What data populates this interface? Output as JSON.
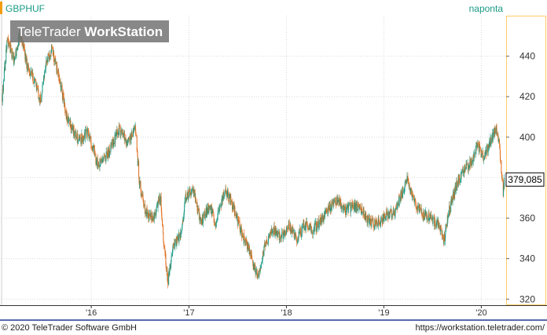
{
  "header": {
    "symbol": "GBPHUF",
    "interval": "naponta",
    "watermark_prefix": "TeleTrader ",
    "watermark_bold": "WorkStation"
  },
  "footer": {
    "copyright": "© 2020 TeleTrader Software GmbH",
    "url": "https://workstation.teletrader.com/"
  },
  "colors": {
    "up": "#1a9a86",
    "down": "#e07020",
    "last_badge_bg": "#ffffff",
    "axis_border": "#ffcc66",
    "footer_line": "#1f3a93"
  },
  "chart_data": {
    "type": "candlestick",
    "series_name": "GBPHUF",
    "y_axis": {
      "ticks": [
        320,
        340,
        360,
        380,
        400,
        420,
        440
      ],
      "ylim": [
        317,
        460
      ],
      "position": "right"
    },
    "x_axis": {
      "ticks": [
        "'16",
        "'17",
        "'18",
        "'19",
        "'20"
      ],
      "tick_dates": [
        "2016-01-01",
        "2017-01-01",
        "2018-01-01",
        "2019-01-01",
        "2020-01-01"
      ],
      "xlim": [
        "2015-01-30",
        "2020-04-03"
      ]
    },
    "last_value_label": "379,085",
    "last_value": 379.085,
    "grid": true,
    "anchors": [
      [
        "2015-02-02",
        420
      ],
      [
        "2015-02-20",
        448
      ],
      [
        "2015-03-20",
        438
      ],
      [
        "2015-04-10",
        452
      ],
      [
        "2015-05-05",
        436
      ],
      [
        "2015-06-10",
        425
      ],
      [
        "2015-06-25",
        418
      ],
      [
        "2015-07-15",
        436
      ],
      [
        "2015-08-05",
        444
      ],
      [
        "2015-09-01",
        430
      ],
      [
        "2015-10-01",
        410
      ],
      [
        "2015-11-15",
        398
      ],
      [
        "2015-12-20",
        403
      ],
      [
        "2016-01-25",
        386
      ],
      [
        "2016-03-05",
        392
      ],
      [
        "2016-04-15",
        404
      ],
      [
        "2016-05-15",
        397
      ],
      [
        "2016-06-15",
        405
      ],
      [
        "2016-06-28",
        378
      ],
      [
        "2016-07-20",
        364
      ],
      [
        "2016-08-20",
        359
      ],
      [
        "2016-09-15",
        370
      ],
      [
        "2016-10-01",
        345
      ],
      [
        "2016-10-14",
        328
      ],
      [
        "2016-11-01",
        345
      ],
      [
        "2016-12-01",
        352
      ],
      [
        "2016-12-20",
        370
      ],
      [
        "2017-01-15",
        375
      ],
      [
        "2017-02-15",
        358
      ],
      [
        "2017-03-20",
        366
      ],
      [
        "2017-04-10",
        357
      ],
      [
        "2017-05-15",
        374
      ],
      [
        "2017-06-10",
        368
      ],
      [
        "2017-07-10",
        355
      ],
      [
        "2017-08-10",
        346
      ],
      [
        "2017-09-01",
        336
      ],
      [
        "2017-09-20",
        331
      ],
      [
        "2017-10-10",
        345
      ],
      [
        "2017-11-10",
        355
      ],
      [
        "2017-12-10",
        351
      ],
      [
        "2018-01-10",
        356
      ],
      [
        "2018-02-10",
        350
      ],
      [
        "2018-03-10",
        357
      ],
      [
        "2018-04-10",
        354
      ],
      [
        "2018-05-10",
        359
      ],
      [
        "2018-06-10",
        365
      ],
      [
        "2018-07-10",
        369
      ],
      [
        "2018-08-10",
        364
      ],
      [
        "2018-09-10",
        366
      ],
      [
        "2018-10-10",
        364
      ],
      [
        "2018-11-10",
        358
      ],
      [
        "2018-12-10",
        357
      ],
      [
        "2019-01-10",
        362
      ],
      [
        "2019-02-10",
        363
      ],
      [
        "2019-03-10",
        372
      ],
      [
        "2019-03-28",
        379
      ],
      [
        "2019-05-01",
        367
      ],
      [
        "2019-06-01",
        361
      ],
      [
        "2019-07-01",
        360
      ],
      [
        "2019-08-01",
        355
      ],
      [
        "2019-08-14",
        349
      ],
      [
        "2019-09-01",
        363
      ],
      [
        "2019-10-01",
        377
      ],
      [
        "2019-11-01",
        384
      ],
      [
        "2019-12-01",
        389
      ],
      [
        "2019-12-15",
        397
      ],
      [
        "2020-01-10",
        390
      ],
      [
        "2020-02-01",
        397
      ],
      [
        "2020-02-25",
        404
      ],
      [
        "2020-03-08",
        398
      ],
      [
        "2020-03-15",
        383
      ],
      [
        "2020-03-23",
        373
      ],
      [
        "2020-03-27",
        379
      ]
    ]
  }
}
